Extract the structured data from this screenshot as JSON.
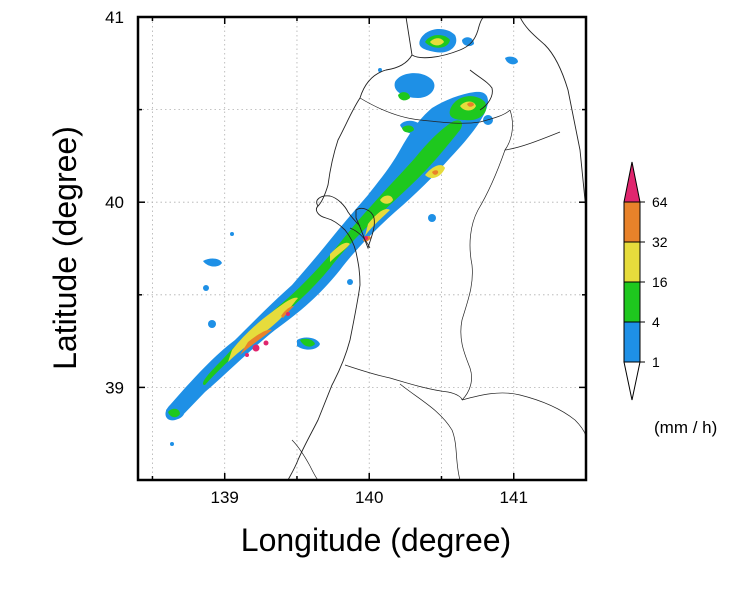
{
  "map": {
    "xlabel": "Longitude (degree)",
    "ylabel": "Latitude (degree)",
    "lon_range": [
      138.4,
      141.5
    ],
    "lat_range": [
      38.5,
      41.0
    ],
    "x_ticks": [
      {
        "value": 139,
        "label": "139"
      },
      {
        "value": 140,
        "label": "140"
      },
      {
        "value": 141,
        "label": "141"
      }
    ],
    "y_ticks": [
      {
        "value": 39,
        "label": "39"
      },
      {
        "value": 40,
        "label": "40"
      },
      {
        "value": 41,
        "label": "41"
      }
    ],
    "grid": true
  },
  "colorbar": {
    "unit": "(mm / h)",
    "levels": [
      {
        "label": "1",
        "color": "#1e90e6"
      },
      {
        "label": "4",
        "color": "#1ec81e"
      },
      {
        "label": "16",
        "color": "#e6dc3c"
      },
      {
        "label": "32",
        "color": "#e8822a"
      },
      {
        "label": "64",
        "color": "#e0266e"
      }
    ]
  },
  "precip_palette": {
    "light": "#1e90e6",
    "moderate": "#1ec81e",
    "heavy": "#e6dc3c",
    "very_heavy": "#e8822a",
    "extreme": "#e0266e"
  }
}
